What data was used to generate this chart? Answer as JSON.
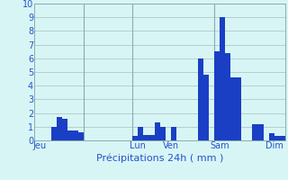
{
  "title": "",
  "xlabel": "Précipitations 24h ( mm )",
  "ylabel": "",
  "background_color": "#d8f5f5",
  "bar_color": "#1a3fc4",
  "grid_color": "#b0c8c8",
  "ylim": [
    0,
    10
  ],
  "bar_values": [
    0,
    0,
    0,
    1.0,
    1.7,
    1.6,
    0.7,
    0.7,
    0.6,
    0,
    0,
    0,
    0,
    0,
    0,
    0,
    0,
    0,
    0.3,
    1.0,
    0.4,
    0.4,
    1.3,
    1.0,
    0,
    1.0,
    0,
    0,
    0,
    0,
    6.0,
    4.8,
    0,
    6.5,
    9.0,
    6.4,
    4.6,
    4.6,
    0,
    0,
    1.2,
    1.2,
    0,
    0.5,
    0.3,
    0.3
  ],
  "n_bars": 46,
  "x_tick_positions": [
    0.5,
    9.5,
    18.5,
    24.5,
    33.5,
    43.5
  ],
  "x_tick_labels": [
    "Jeu",
    "",
    "Lun",
    "Ven",
    "Sam",
    "Dim"
  ],
  "vline_positions": [
    9,
    18,
    33
  ],
  "yticks": [
    0,
    1,
    2,
    3,
    4,
    5,
    6,
    7,
    8,
    9,
    10
  ],
  "ytick_labels": [
    "0",
    "1",
    "2",
    "3",
    "4",
    "5",
    "6",
    "7",
    "8",
    "9",
    "10"
  ]
}
